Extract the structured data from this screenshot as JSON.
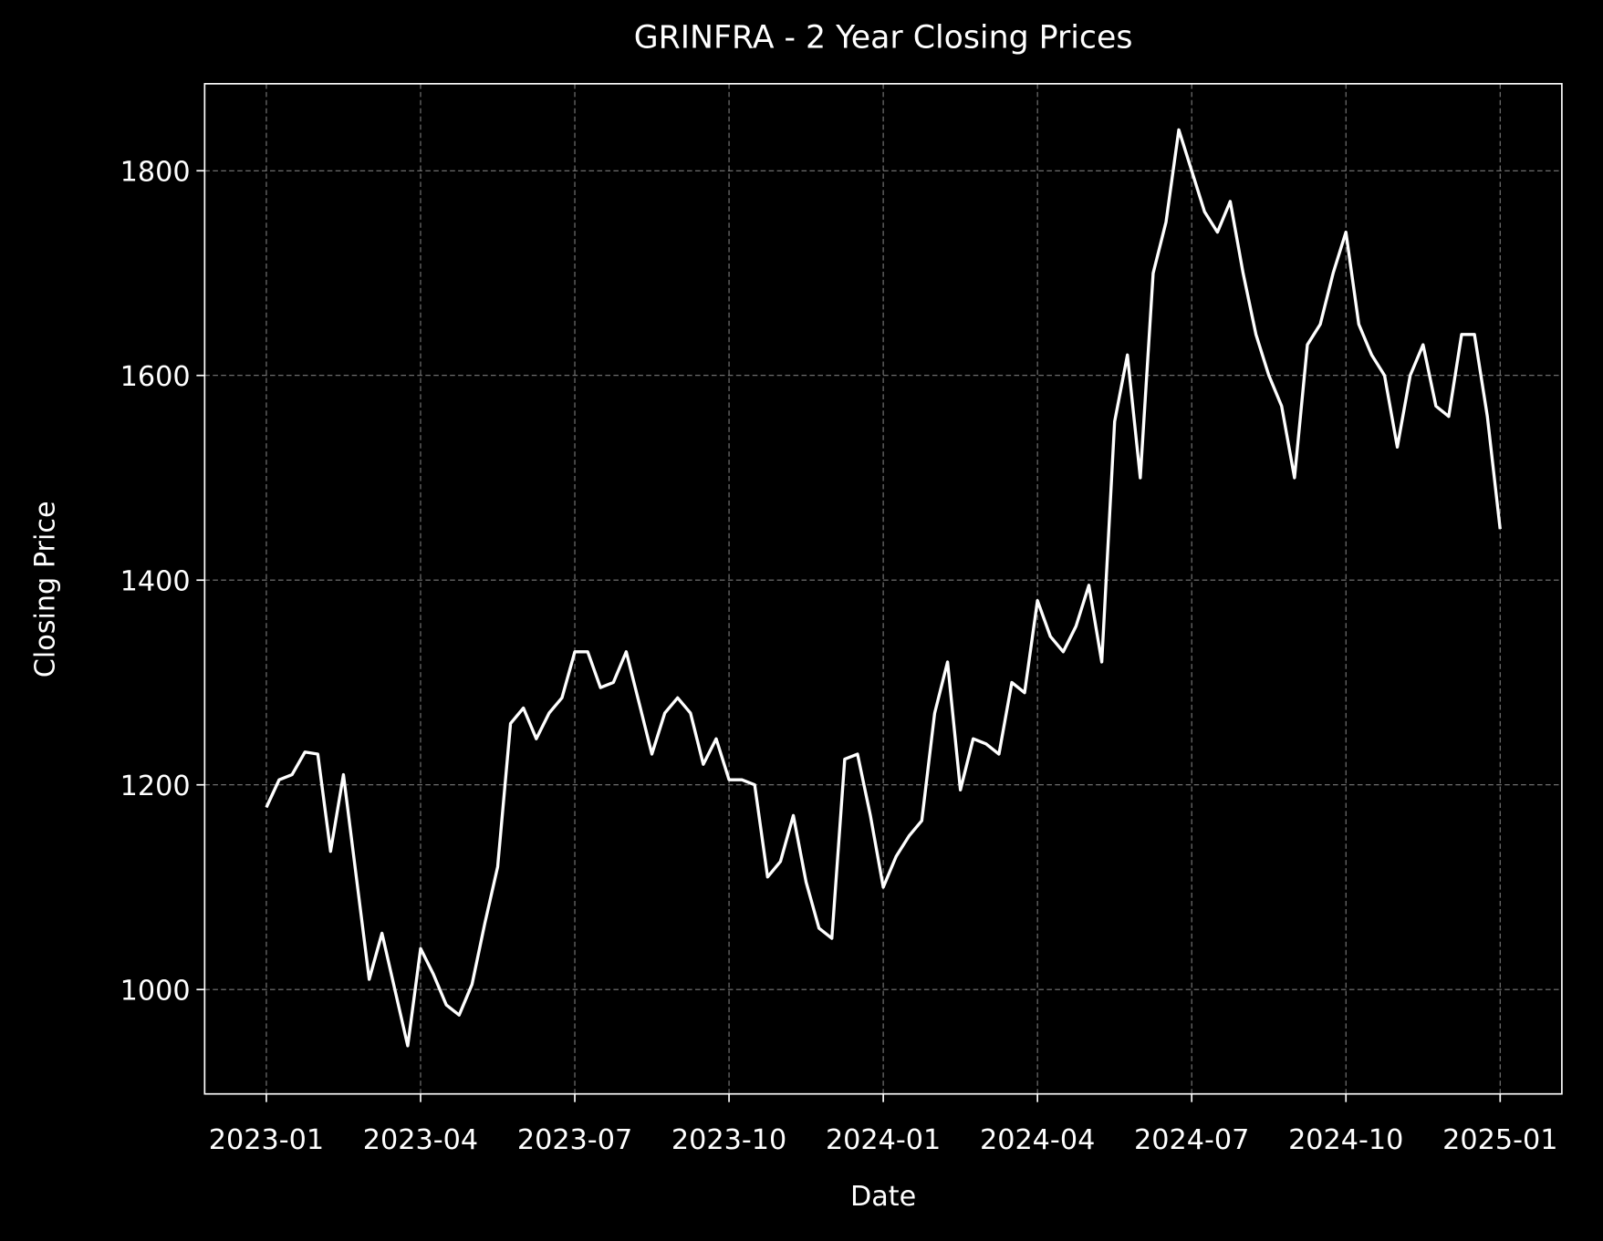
{
  "chart_data": {
    "type": "line",
    "title": "GRINFRA - 2 Year Closing Prices",
    "x_label": "Date",
    "y_label": "Closing Price",
    "x": [
      "2023-01",
      "2023-01",
      "2023-01",
      "2023-01",
      "2023-02",
      "2023-02",
      "2023-02",
      "2023-02",
      "2023-03",
      "2023-03",
      "2023-03",
      "2023-03",
      "2023-04",
      "2023-04",
      "2023-04",
      "2023-04",
      "2023-05",
      "2023-05",
      "2023-05",
      "2023-05",
      "2023-06",
      "2023-06",
      "2023-06",
      "2023-06",
      "2023-07",
      "2023-07",
      "2023-07",
      "2023-07",
      "2023-08",
      "2023-08",
      "2023-08",
      "2023-08",
      "2023-09",
      "2023-09",
      "2023-09",
      "2023-09",
      "2023-10",
      "2023-10",
      "2023-10",
      "2023-10",
      "2023-11",
      "2023-11",
      "2023-11",
      "2023-11",
      "2023-12",
      "2023-12",
      "2023-12",
      "2023-12",
      "2024-01",
      "2024-01",
      "2024-01",
      "2024-01",
      "2024-02",
      "2024-02",
      "2024-02",
      "2024-02",
      "2024-03",
      "2024-03",
      "2024-03",
      "2024-03",
      "2024-04",
      "2024-04",
      "2024-04",
      "2024-04",
      "2024-05",
      "2024-05",
      "2024-05",
      "2024-05",
      "2024-06",
      "2024-06",
      "2024-06",
      "2024-06",
      "2024-07",
      "2024-07",
      "2024-07",
      "2024-07",
      "2024-08",
      "2024-08",
      "2024-08",
      "2024-08",
      "2024-09",
      "2024-09",
      "2024-09",
      "2024-09",
      "2024-10",
      "2024-10",
      "2024-10",
      "2024-10",
      "2024-11",
      "2024-11",
      "2024-11",
      "2024-11",
      "2024-12",
      "2024-12",
      "2024-12",
      "2024-12",
      "2025-01"
    ],
    "series": [
      {
        "name": "GRINFRA",
        "color": "#ffffff",
        "values": [
          1178,
          1205,
          1210,
          1232,
          1230,
          1135,
          1210,
          1110,
          1010,
          1055,
          1000,
          945,
          1040,
          1015,
          985,
          975,
          1005,
          1065,
          1120,
          1260,
          1275,
          1245,
          1270,
          1285,
          1330,
          1330,
          1295,
          1300,
          1330,
          1280,
          1230,
          1270,
          1285,
          1270,
          1220,
          1245,
          1205,
          1205,
          1200,
          1110,
          1125,
          1170,
          1105,
          1060,
          1050,
          1225,
          1230,
          1170,
          1100,
          1130,
          1150,
          1165,
          1270,
          1320,
          1195,
          1245,
          1240,
          1230,
          1300,
          1290,
          1380,
          1345,
          1330,
          1355,
          1395,
          1320,
          1555,
          1620,
          1500,
          1700,
          1750,
          1840,
          1800,
          1760,
          1740,
          1770,
          1700,
          1640,
          1600,
          1570,
          1500,
          1630,
          1650,
          1700,
          1740,
          1650,
          1620,
          1600,
          1530,
          1600,
          1630,
          1570,
          1560,
          1640,
          1640,
          1560,
          1450
        ]
      }
    ],
    "xlim": [
      "2023-01",
      "2025-01"
    ],
    "xticks": [
      "2023-01",
      "2023-04",
      "2023-07",
      "2023-10",
      "2024-01",
      "2024-04",
      "2024-07",
      "2024-10",
      "2025-01"
    ],
    "ylim": [
      898,
      1885
    ],
    "yticks": [
      1000,
      1200,
      1400,
      1600,
      1800
    ],
    "grid": true
  }
}
